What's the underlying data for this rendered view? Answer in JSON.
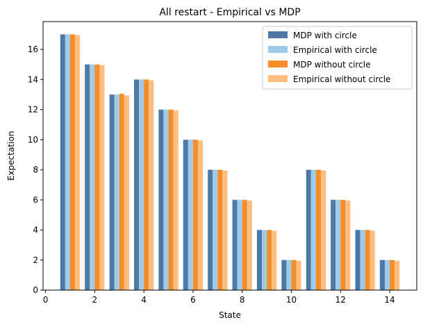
{
  "chart_data": {
    "type": "bar",
    "title": "All restart - Empirical vs MDP",
    "xlabel": "State",
    "ylabel": "Expectation",
    "x": [
      1,
      2,
      3,
      4,
      5,
      6,
      7,
      8,
      9,
      10,
      11,
      12,
      13,
      14
    ],
    "xlim": [
      -0.1,
      15.1
    ],
    "ylim": [
      0,
      17.85
    ],
    "xticks": [
      0,
      2,
      4,
      6,
      8,
      10,
      12,
      14
    ],
    "yticks": [
      0,
      2,
      4,
      6,
      8,
      10,
      12,
      14,
      16
    ],
    "grid": false,
    "legend_position": "top-right",
    "series": [
      {
        "name": "MDP with circle",
        "color": "#4e79a7",
        "values": [
          17,
          15,
          13,
          14,
          12,
          10,
          8,
          6,
          4,
          2,
          8,
          6,
          4,
          2
        ]
      },
      {
        "name": "Empirical with circle",
        "color": "#a0cbe8",
        "values": [
          17,
          15,
          13,
          14,
          12,
          10,
          8,
          6,
          4,
          2,
          8,
          6,
          4,
          2
        ]
      },
      {
        "name": "MDP without circle",
        "color": "#f28e2b",
        "values": [
          17,
          15,
          13.05,
          14,
          12,
          10,
          8,
          6,
          4,
          2,
          8,
          6,
          4,
          2
        ]
      },
      {
        "name": "Empirical without circle",
        "color": "#ffbe7d",
        "values": [
          16.95,
          14.95,
          12.95,
          13.95,
          11.95,
          9.95,
          7.95,
          5.95,
          3.95,
          1.95,
          7.95,
          5.95,
          3.95,
          1.95
        ]
      }
    ]
  }
}
